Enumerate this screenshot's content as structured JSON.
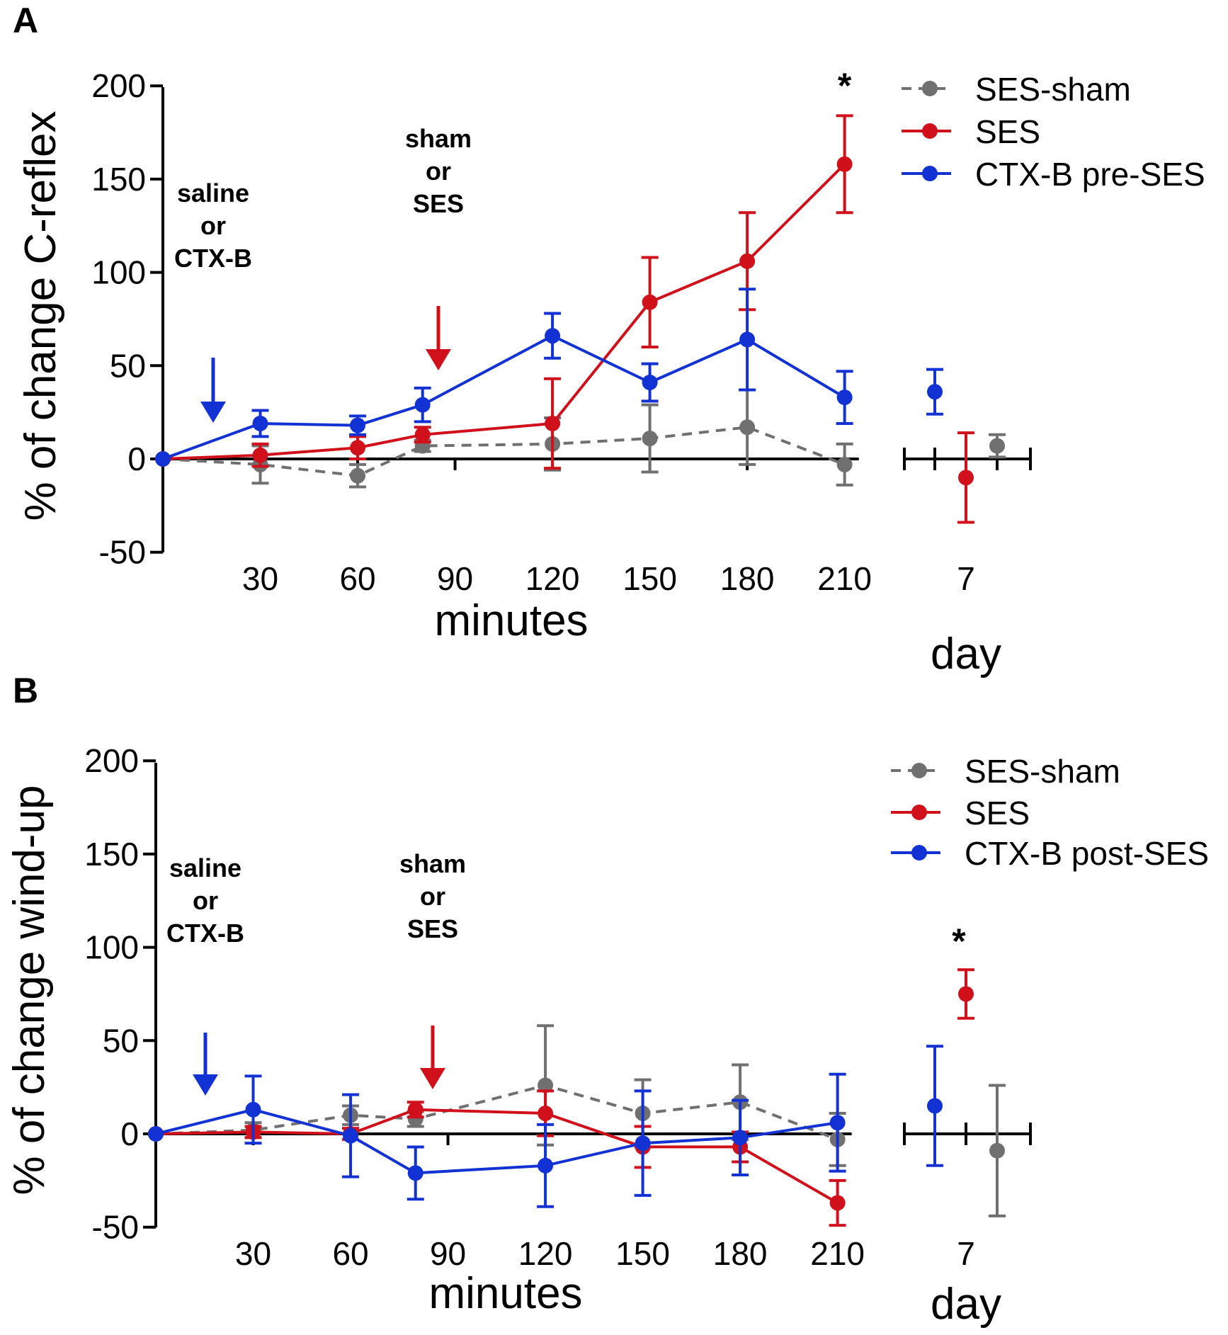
{
  "chart_data": [
    {
      "panel": "A",
      "type": "line",
      "ylabel": "% of change C-reflex",
      "xlabel": "minutes",
      "xlabel_day": "day",
      "ylim": [
        -50,
        200
      ],
      "yticks": [
        -50,
        0,
        50,
        100,
        150,
        200
      ],
      "xtick_labels": [
        "30",
        "60",
        "90",
        "120",
        "150",
        "180",
        "210"
      ],
      "xtick_values": [
        30,
        60,
        90,
        120,
        150,
        180,
        210
      ],
      "day_tick_label": "7",
      "series": [
        {
          "name": "SES-sham",
          "color": "#707070",
          "dashed": true,
          "points": [
            [
              0,
              0,
              0
            ],
            [
              30,
              -3,
              10
            ],
            [
              60,
              -9,
              6
            ],
            [
              80,
              7,
              3
            ],
            [
              120,
              8,
              14
            ],
            [
              150,
              11,
              18
            ],
            [
              180,
              17,
              20
            ],
            [
              210,
              -3,
              11
            ]
          ],
          "day": [
            7,
            6
          ]
        },
        {
          "name": "SES",
          "color": "#d0111b",
          "dashed": false,
          "points": [
            [
              0,
              0,
              0
            ],
            [
              30,
              2,
              6
            ],
            [
              60,
              6,
              6
            ],
            [
              80,
              13,
              4
            ],
            [
              120,
              19,
              24
            ],
            [
              150,
              84,
              24
            ],
            [
              180,
              106,
              26
            ],
            [
              210,
              158,
              26
            ]
          ],
          "day": [
            -10,
            24
          ]
        },
        {
          "name": "CTX-B pre-SES",
          "color": "#1332d4",
          "dashed": false,
          "points": [
            [
              0,
              0,
              0
            ],
            [
              30,
              19,
              7
            ],
            [
              60,
              18,
              5
            ],
            [
              80,
              29,
              9
            ],
            [
              120,
              66,
              12
            ],
            [
              150,
              41,
              10
            ],
            [
              180,
              64,
              27
            ],
            [
              210,
              33,
              14
            ]
          ],
          "day": [
            36,
            12
          ]
        }
      ],
      "annotations": [
        {
          "lines": [
            "saline",
            "or",
            "CTX-B"
          ],
          "color": "#1332d4",
          "minute": 10
        },
        {
          "lines": [
            "sham",
            "or",
            "SES"
          ],
          "color": "#d0111b",
          "minute": 85
        }
      ],
      "significance": [
        {
          "label": "*",
          "where": "210 minutes"
        }
      ]
    },
    {
      "panel": "B",
      "type": "line",
      "ylabel": "% of change wind-up",
      "xlabel": "minutes",
      "xlabel_day": "day",
      "ylim": [
        -50,
        200
      ],
      "yticks": [
        -50,
        0,
        50,
        100,
        150,
        200
      ],
      "xtick_labels": [
        "30",
        "60",
        "90",
        "120",
        "150",
        "180",
        "210"
      ],
      "xtick_values": [
        30,
        60,
        90,
        120,
        150,
        180,
        210
      ],
      "day_tick_label": "7",
      "series": [
        {
          "name": "SES-sham",
          "color": "#707070",
          "dashed": true,
          "points": [
            [
              0,
              0,
              0
            ],
            [
              30,
              2,
              4
            ],
            [
              60,
              10,
              5
            ],
            [
              80,
              8,
              4
            ],
            [
              120,
              26,
              32
            ],
            [
              150,
              11,
              18
            ],
            [
              180,
              17,
              20
            ],
            [
              210,
              -3,
              14
            ]
          ],
          "day": [
            -9,
            35
          ]
        },
        {
          "name": "SES",
          "color": "#d0111b",
          "dashed": false,
          "points": [
            [
              0,
              0,
              0
            ],
            [
              30,
              1,
              3
            ],
            [
              60,
              0,
              3
            ],
            [
              80,
              13,
              4
            ],
            [
              120,
              11,
              12
            ],
            [
              150,
              -7,
              11
            ],
            [
              180,
              -7,
              8
            ],
            [
              210,
              -37,
              12
            ]
          ],
          "day": [
            75,
            13
          ]
        },
        {
          "name": "CTX-B post-SES",
          "color": "#1332d4",
          "dashed": false,
          "points": [
            [
              0,
              0,
              0
            ],
            [
              30,
              13,
              18
            ],
            [
              60,
              -1,
              22
            ],
            [
              80,
              -21,
              14
            ],
            [
              120,
              -17,
              22
            ],
            [
              150,
              -5,
              28
            ],
            [
              180,
              -2,
              20
            ],
            [
              210,
              6,
              26
            ]
          ],
          "day": [
            15,
            32
          ]
        }
      ],
      "annotations": [
        {
          "lines": [
            "saline",
            "or",
            "CTX-B"
          ],
          "color": "#1332d4",
          "minute": 10
        },
        {
          "lines": [
            "sham",
            "or",
            "SES"
          ],
          "color": "#d0111b",
          "minute": 85
        }
      ],
      "significance": [
        {
          "label": "*",
          "where": "day 7"
        }
      ]
    }
  ]
}
